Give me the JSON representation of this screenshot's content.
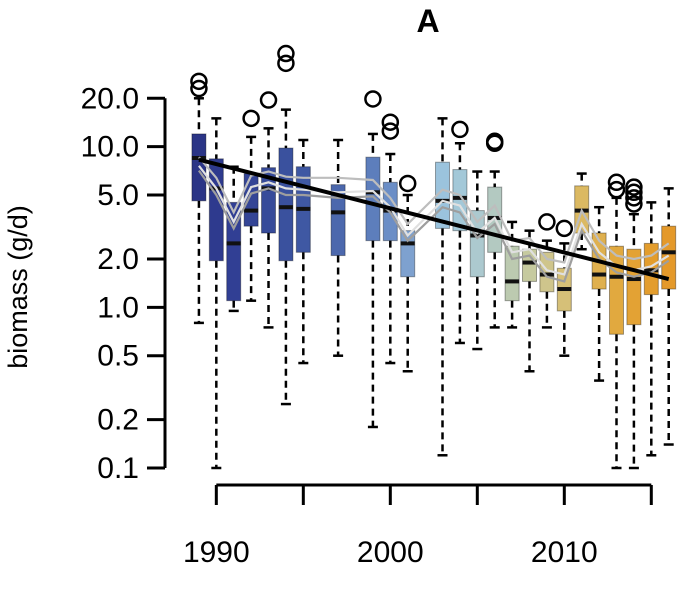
{
  "chart_data": {
    "type": "box",
    "title": "A",
    "xlabel": "",
    "ylabel": "biomass (g/d)",
    "y_scale": "log",
    "ylim": [
      0.1,
      30
    ],
    "xlim": [
      1988.2,
      2015.5
    ],
    "y_ticks": [
      {
        "value": 20.0,
        "label": "20.0"
      },
      {
        "value": 10.0,
        "label": "10.0"
      },
      {
        "value": 5.0,
        "label": "5.0"
      },
      {
        "value": 2.0,
        "label": "2.0"
      },
      {
        "value": 1.0,
        "label": "1.0"
      },
      {
        "value": 0.5,
        "label": "0.5"
      },
      {
        "value": 0.2,
        "label": "0.2"
      },
      {
        "value": 0.1,
        "label": "0.1"
      }
    ],
    "x_ticks": [
      {
        "value": 1990,
        "label": "1990"
      },
      {
        "value": 1995,
        "label": ""
      },
      {
        "value": 2000,
        "label": "2000"
      },
      {
        "value": 2005,
        "label": ""
      },
      {
        "value": 2010,
        "label": "2010"
      },
      {
        "value": 2015,
        "label": ""
      }
    ],
    "boxes": [
      {
        "year": 1989,
        "whislo": 0.8,
        "q1": 4.6,
        "med": 8.5,
        "q3": 12.0,
        "whishi": 20.0,
        "fliers": [
          23.0,
          25.5
        ],
        "color": "#2b3586"
      },
      {
        "year": 1990,
        "whislo": 0.1,
        "q1": 1.95,
        "med": 5.5,
        "q3": 8.4,
        "whishi": 15.0,
        "fliers": [],
        "color": "#2e3a8e"
      },
      {
        "year": 1991,
        "whislo": 0.95,
        "q1": 1.1,
        "med": 2.5,
        "q3": 4.5,
        "whishi": 7.5,
        "fliers": [],
        "color": "#313f94"
      },
      {
        "year": 1992,
        "whislo": 1.1,
        "q1": 3.2,
        "med": 4.0,
        "q3": 6.8,
        "whishi": 11.5,
        "fliers": [
          15.0
        ],
        "color": "#344596"
      },
      {
        "year": 1993,
        "whislo": 0.75,
        "q1": 2.9,
        "med": 5.5,
        "q3": 7.4,
        "whishi": 13.0,
        "fliers": [
          19.5
        ],
        "color": "#374b9a"
      },
      {
        "year": 1994,
        "whislo": 0.25,
        "q1": 1.95,
        "med": 4.2,
        "q3": 9.8,
        "whishi": 17.0,
        "fliers": [
          33.0,
          38.0
        ],
        "color": "#3a519e"
      },
      {
        "year": 1995,
        "whislo": 0.45,
        "q1": 2.2,
        "med": 4.1,
        "q3": 7.5,
        "whishi": 11.0,
        "fliers": [],
        "color": "#3f58a3"
      },
      {
        "year": 1997,
        "whislo": 0.5,
        "q1": 2.1,
        "med": 3.9,
        "q3": 5.8,
        "whishi": 11.0,
        "fliers": [],
        "color": "#4c68ad"
      },
      {
        "year": 1999,
        "whislo": 0.18,
        "q1": 2.6,
        "med": 5.2,
        "q3": 8.6,
        "whishi": 12.0,
        "fliers": [
          19.8
        ],
        "color": "#5d7ebc"
      },
      {
        "year": 2000,
        "whislo": 0.45,
        "q1": 2.6,
        "med": 4.0,
        "q3": 6.0,
        "whishi": 9.0,
        "fliers": [
          12.5,
          14.2
        ],
        "color": "#6b8ec6"
      },
      {
        "year": 2001,
        "whislo": 0.4,
        "q1": 1.55,
        "med": 2.5,
        "q3": 3.0,
        "whishi": 5.0,
        "fliers": [
          5.9
        ],
        "color": "#7ea1cf"
      },
      {
        "year": 2003,
        "whislo": 0.12,
        "q1": 3.1,
        "med": 4.6,
        "q3": 8.0,
        "whishi": 15.0,
        "fliers": [],
        "color": "#9bc3dd"
      },
      {
        "year": 2004,
        "whislo": 0.6,
        "q1": 3.0,
        "med": 4.8,
        "q3": 7.2,
        "whishi": 10.5,
        "fliers": [
          12.8
        ],
        "color": "#a3c8d8"
      },
      {
        "year": 2005,
        "whislo": 0.55,
        "q1": 1.55,
        "med": 2.8,
        "q3": 4.0,
        "whishi": 7.0,
        "fliers": [],
        "color": "#acc9cf"
      },
      {
        "year": 2006,
        "whislo": 0.75,
        "q1": 2.2,
        "med": 3.6,
        "q3": 5.6,
        "whishi": 7.0,
        "fliers": [
          10.5,
          10.8
        ],
        "color": "#b3c9c1"
      },
      {
        "year": 2007,
        "whislo": 0.75,
        "q1": 1.1,
        "med": 1.45,
        "q3": 2.4,
        "whishi": 3.4,
        "fliers": [],
        "color": "#bccab0"
      },
      {
        "year": 2008,
        "whislo": 0.4,
        "q1": 1.45,
        "med": 1.9,
        "q3": 2.3,
        "whishi": 3.0,
        "fliers": [],
        "color": "#c6ca9f"
      },
      {
        "year": 2009,
        "whislo": 0.75,
        "q1": 1.25,
        "med": 1.6,
        "q3": 2.2,
        "whishi": 2.6,
        "fliers": [
          3.4
        ],
        "color": "#cfc58c"
      },
      {
        "year": 2010,
        "whislo": 0.5,
        "q1": 0.95,
        "med": 1.3,
        "q3": 1.75,
        "whishi": 2.5,
        "fliers": [
          3.1
        ],
        "color": "#d6c078"
      },
      {
        "year": 2011,
        "whislo": 2.3,
        "q1": 2.9,
        "med": 4.0,
        "q3": 5.7,
        "whishi": 6.8,
        "fliers": [],
        "color": "#dbb962"
      },
      {
        "year": 2012,
        "whislo": 0.35,
        "q1": 1.3,
        "med": 1.6,
        "q3": 2.9,
        "whishi": 4.2,
        "fliers": [],
        "color": "#dfb04f"
      },
      {
        "year": 2013,
        "whislo": 0.1,
        "q1": 0.68,
        "med": 1.55,
        "q3": 2.4,
        "whishi": 4.8,
        "fliers": [
          5.4,
          6.0
        ],
        "color": "#e1a93f"
      },
      {
        "year": 2014,
        "whislo": 0.1,
        "q1": 0.78,
        "med": 1.5,
        "q3": 2.3,
        "whishi": 3.8,
        "fliers": [
          4.4,
          4.8,
          5.2,
          5.6
        ],
        "color": "#e3a234"
      },
      {
        "year": 2015,
        "whislo": 0.12,
        "q1": 1.2,
        "med": 1.7,
        "q3": 2.5,
        "whishi": 4.5,
        "fliers": [],
        "color": "#e39d2d"
      },
      {
        "year": 2016,
        "whislo": 0.14,
        "q1": 1.3,
        "med": 2.2,
        "q3": 3.2,
        "whishi": 5.5,
        "fliers": [],
        "color": "#e4992a"
      }
    ],
    "trend_line": {
      "x": [
        1989,
        2016
      ],
      "y": [
        8.3,
        1.5
      ],
      "color": "#000000"
    },
    "band_lines": [
      {
        "color": "#bdbdbd",
        "x": [
          1989,
          1990,
          1991,
          1992,
          1993,
          1994,
          1995,
          1997,
          1999,
          2000,
          2001,
          2003,
          2004,
          2005,
          2006,
          2007,
          2008,
          2009,
          2010,
          2011,
          2012,
          2013,
          2014,
          2015,
          2016
        ],
        "y": [
          8.6,
          6.4,
          3.9,
          6.6,
          7.0,
          6.5,
          6.4,
          6.4,
          6.2,
          4.8,
          3.3,
          5.4,
          5.0,
          3.4,
          4.3,
          2.6,
          2.7,
          2.0,
          1.9,
          4.0,
          2.6,
          2.1,
          2.0,
          2.1,
          2.5
        ]
      },
      {
        "color": "#e0e0e0",
        "x": [
          1989,
          1990,
          1991,
          1992,
          1993,
          1994,
          1995,
          1997,
          1999,
          2000,
          2001,
          2003,
          2004,
          2005,
          2006,
          2007,
          2008,
          2009,
          2010,
          2011,
          2012,
          2013,
          2014,
          2015,
          2016
        ],
        "y": [
          7.6,
          5.5,
          3.4,
          5.6,
          6.0,
          5.5,
          5.4,
          5.2,
          5.3,
          4.2,
          2.8,
          4.6,
          4.3,
          2.9,
          3.6,
          2.2,
          2.3,
          1.7,
          1.6,
          3.3,
          2.2,
          1.8,
          1.7,
          1.8,
          2.1
        ]
      },
      {
        "color": "#9e9e9e",
        "x": [
          1989,
          1990,
          1991,
          1992,
          1993,
          1994,
          1995,
          1997,
          1999,
          2000,
          2001,
          2003,
          2004,
          2005,
          2006,
          2007,
          2008,
          2009,
          2010,
          2011,
          2012,
          2013,
          2014,
          2015,
          2016
        ],
        "y": [
          7.1,
          5.0,
          3.1,
          5.1,
          5.5,
          5.0,
          5.0,
          4.8,
          4.9,
          3.9,
          2.6,
          4.2,
          3.9,
          2.7,
          3.3,
          2.0,
          2.1,
          1.55,
          1.45,
          3.0,
          2.0,
          1.65,
          1.55,
          1.65,
          1.95
        ]
      }
    ]
  }
}
